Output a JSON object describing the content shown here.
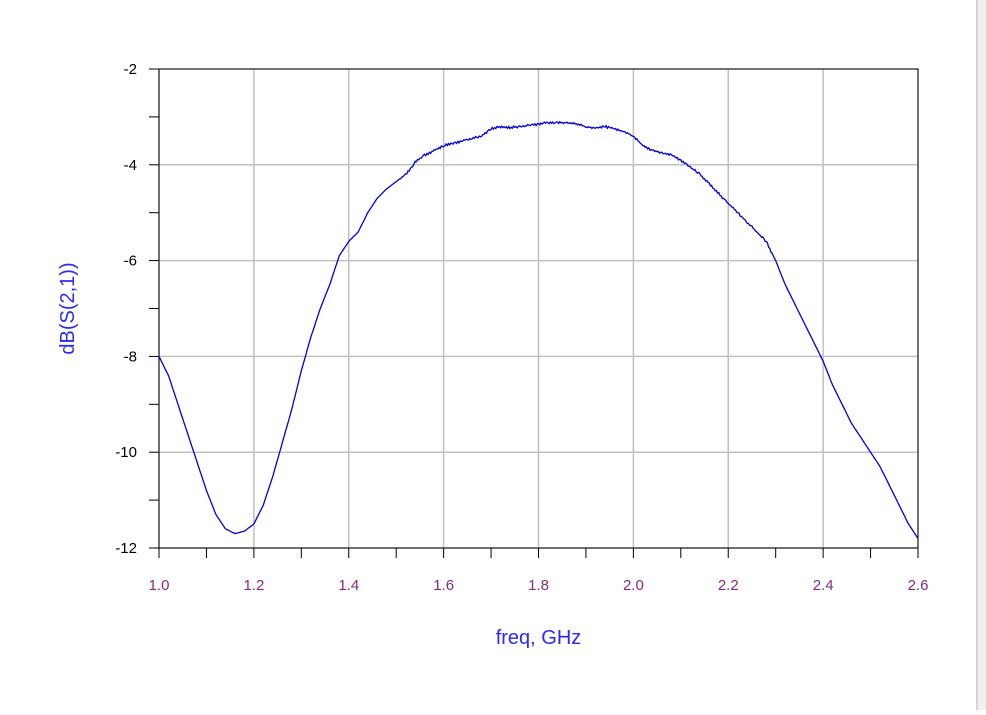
{
  "colors": {
    "trace": "#0000e0",
    "axis_title": "#2a2aff",
    "x_tick_labels": "#8a2a7a",
    "y_tick_labels": "#000000",
    "grid": "#c0c0c0",
    "frame": "#000000"
  },
  "chart_data": {
    "type": "line",
    "title": "",
    "xlabel": "freq, GHz",
    "ylabel": "dB(S(2,1))",
    "xlim": [
      1.0,
      2.6
    ],
    "ylim": [
      -12,
      -2
    ],
    "grid": true,
    "x_ticks": [
      "1.0",
      "1.2",
      "1.4",
      "1.6",
      "1.8",
      "2.0",
      "2.2",
      "2.4",
      "2.6"
    ],
    "y_ticks": [
      "-2",
      "-4",
      "-6",
      "-8",
      "-10",
      "-12"
    ],
    "series": [
      {
        "x": [
          1.0,
          1.02,
          1.04,
          1.06,
          1.08,
          1.1,
          1.12,
          1.14,
          1.16,
          1.18,
          1.2,
          1.22,
          1.24,
          1.26,
          1.28,
          1.3,
          1.32,
          1.34,
          1.36,
          1.38,
          1.4,
          1.42,
          1.44,
          1.46,
          1.48,
          1.5,
          1.52,
          1.54,
          1.56,
          1.58,
          1.6,
          1.62,
          1.64,
          1.66,
          1.68,
          1.7,
          1.72,
          1.74,
          1.76,
          1.78,
          1.8,
          1.82,
          1.84,
          1.86,
          1.88,
          1.9,
          1.92,
          1.94,
          1.96,
          1.98,
          2.0,
          2.02,
          2.04,
          2.06,
          2.08,
          2.1,
          2.12,
          2.14,
          2.16,
          2.18,
          2.2,
          2.22,
          2.24,
          2.26,
          2.28,
          2.3,
          2.32,
          2.34,
          2.36,
          2.38,
          2.4,
          2.42,
          2.44,
          2.46,
          2.48,
          2.5,
          2.52,
          2.54,
          2.56,
          2.58,
          2.6
        ],
        "values": [
          -8.0,
          -8.4,
          -9.0,
          -9.6,
          -10.2,
          -10.8,
          -11.3,
          -11.6,
          -11.7,
          -11.65,
          -11.5,
          -11.1,
          -10.5,
          -9.8,
          -9.1,
          -8.3,
          -7.6,
          -7.0,
          -6.5,
          -5.9,
          -5.6,
          -5.4,
          -5.0,
          -4.7,
          -4.5,
          -4.35,
          -4.2,
          -3.95,
          -3.8,
          -3.7,
          -3.6,
          -3.55,
          -3.5,
          -3.45,
          -3.4,
          -3.25,
          -3.2,
          -3.22,
          -3.2,
          -3.18,
          -3.15,
          -3.12,
          -3.12,
          -3.13,
          -3.15,
          -3.2,
          -3.23,
          -3.2,
          -3.25,
          -3.3,
          -3.4,
          -3.6,
          -3.7,
          -3.75,
          -3.8,
          -3.9,
          -4.05,
          -4.2,
          -4.4,
          -4.6,
          -4.8,
          -5.0,
          -5.2,
          -5.4,
          -5.6,
          -6.0,
          -6.5,
          -6.9,
          -7.3,
          -7.7,
          -8.1,
          -8.6,
          -9.0,
          -9.4,
          -9.7,
          -10.0,
          -10.3,
          -10.7,
          -11.1,
          -11.5,
          -11.8
        ]
      }
    ]
  }
}
